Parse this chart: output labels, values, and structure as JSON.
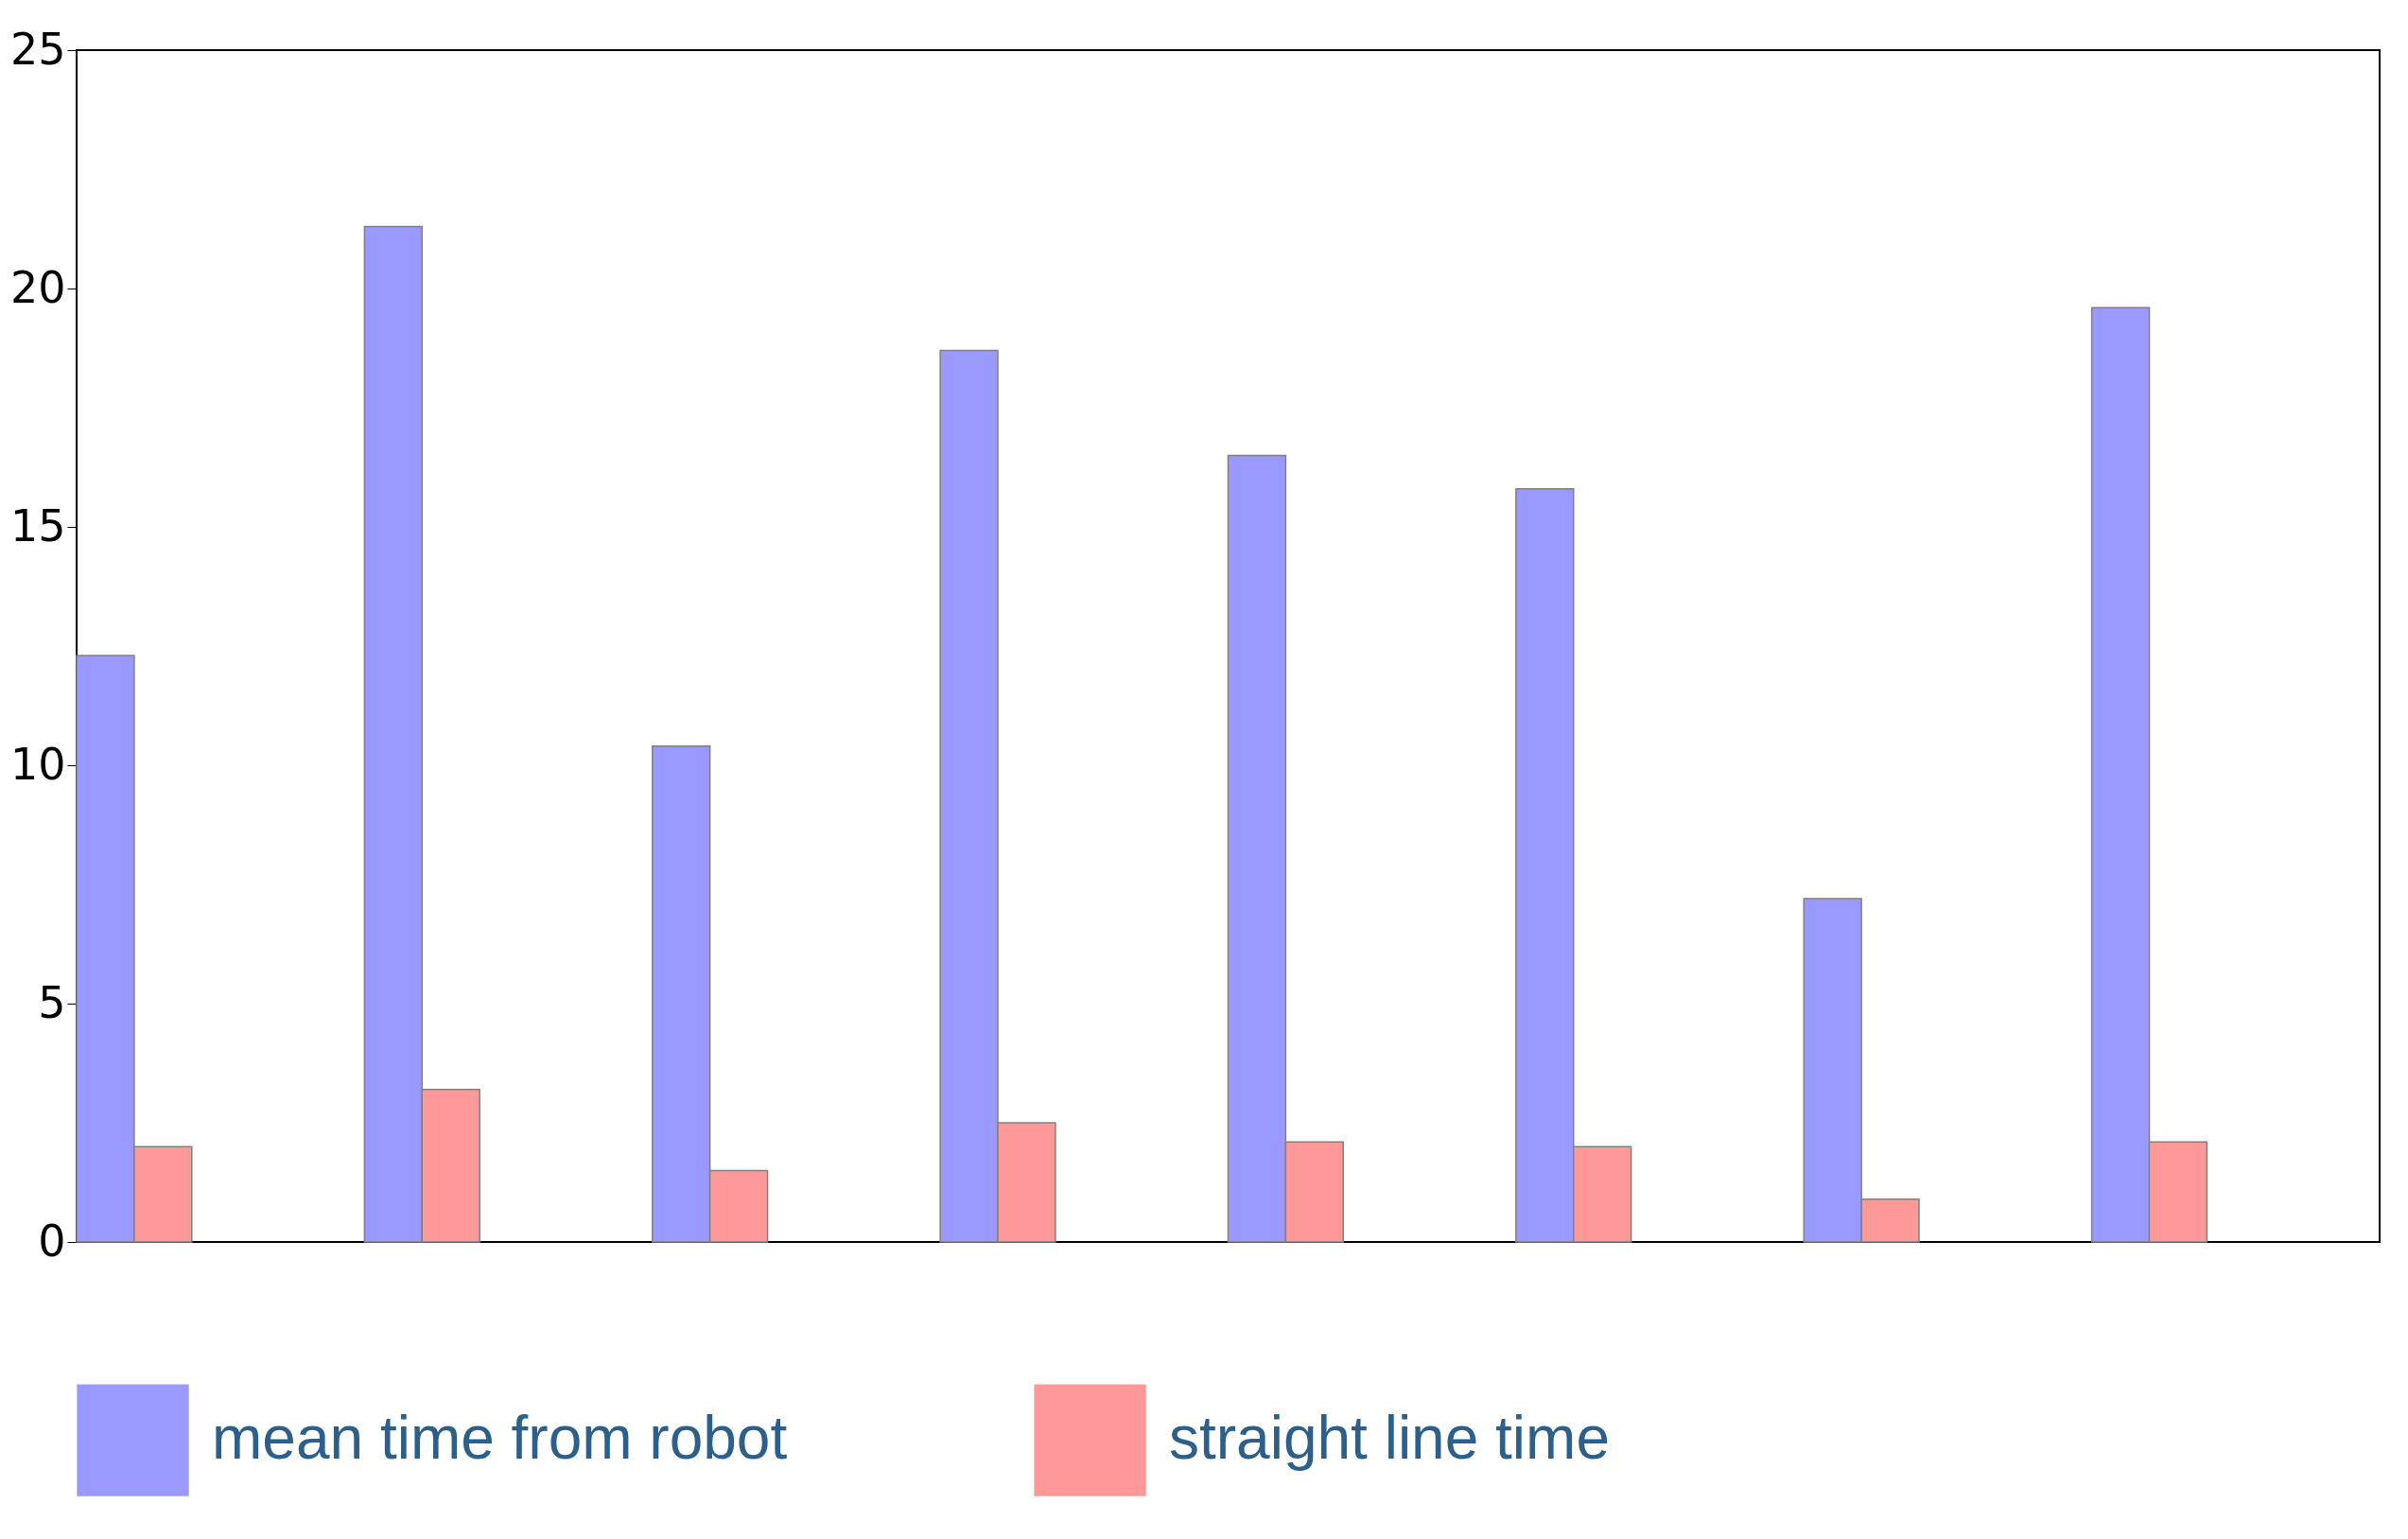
{
  "chart_data": {
    "type": "bar",
    "categories": [
      null,
      null,
      null,
      null,
      null,
      null,
      null,
      null
    ],
    "series": [
      {
        "name": "mean time from robot",
        "color": "#9999ff",
        "values": [
          12.3,
          21.3,
          10.4,
          18.7,
          16.5,
          15.8,
          7.2,
          19.6
        ]
      },
      {
        "name": "straight line time",
        "color": "#ff9999",
        "values": [
          2.0,
          3.2,
          1.5,
          2.5,
          2.1,
          2.0,
          0.9,
          2.1
        ]
      }
    ],
    "ylim": [
      0,
      25
    ],
    "yticks": [
      0,
      5,
      10,
      15,
      20,
      25
    ],
    "grid": false,
    "legend": "bottom"
  }
}
